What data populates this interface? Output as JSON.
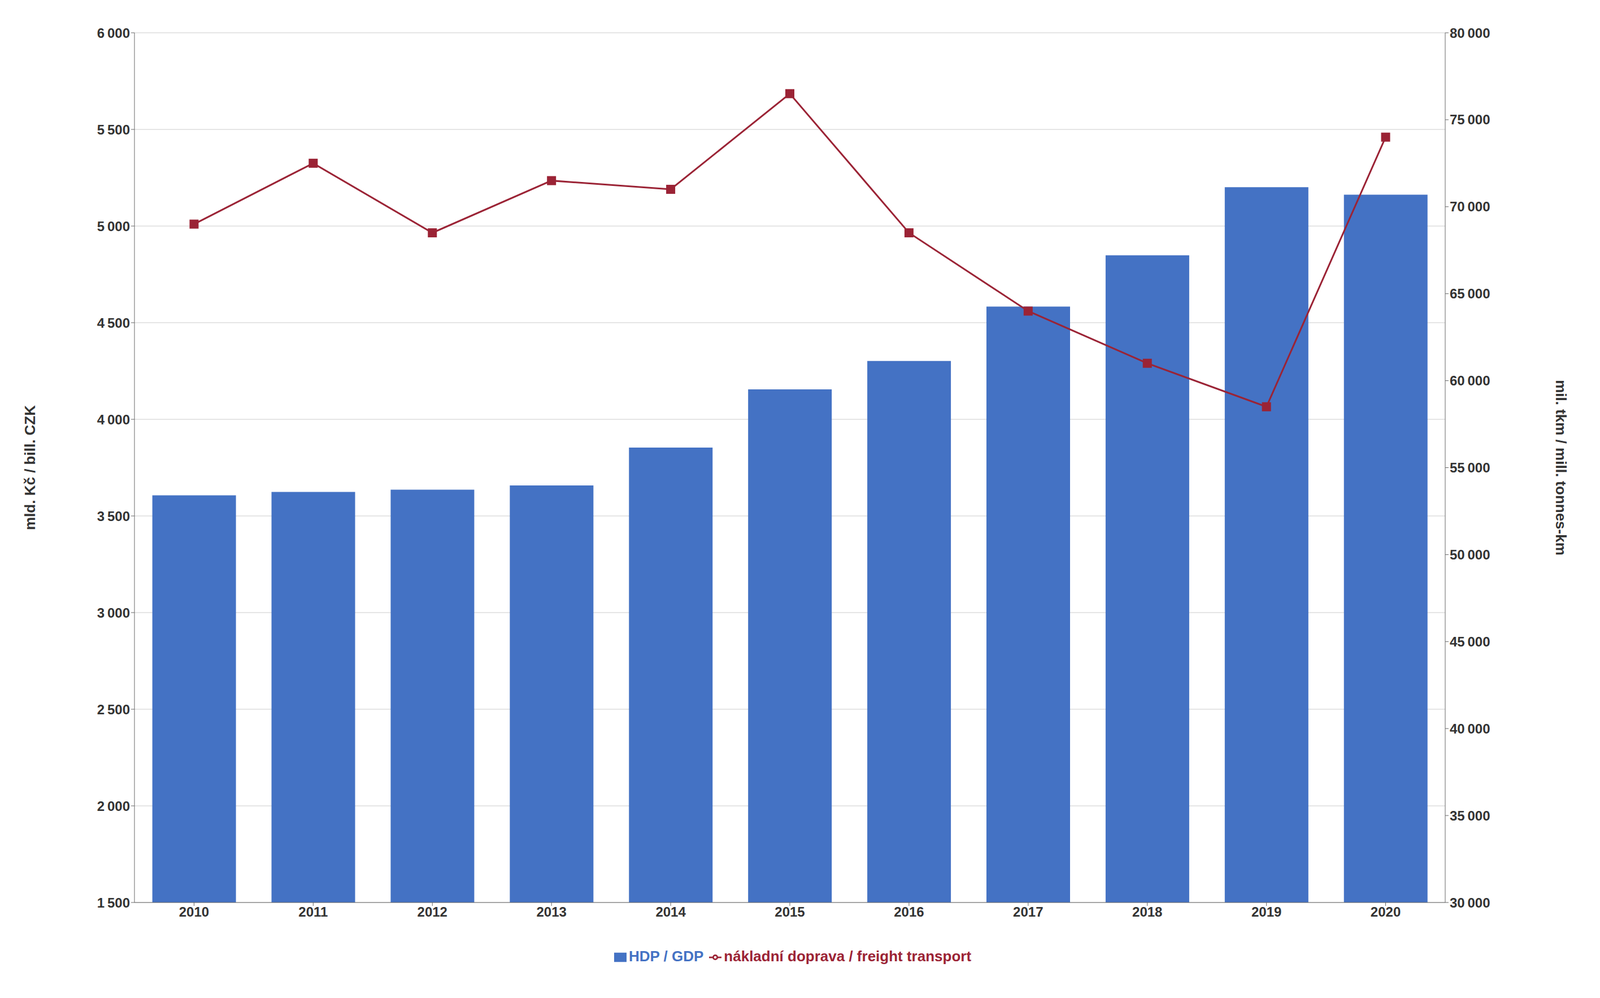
{
  "chart_data": {
    "type": "bar",
    "categories": [
      "2010",
      "2011",
      "2012",
      "2013",
      "2014",
      "2015",
      "2016",
      "2017",
      "2018",
      "2019",
      "2020"
    ],
    "series": [
      {
        "name": "HDP / GDP",
        "type": "bar",
        "color": "#4472C4",
        "values": [
          3607,
          3624,
          3636,
          3658,
          3854,
          4155,
          4302,
          4583,
          4849,
          5201,
          5162
        ]
      },
      {
        "name": "nákladní doprava / freight transport",
        "type": "line",
        "color": "#9B2335",
        "marker": "square",
        "axis": "y2",
        "values": [
          69000,
          72500,
          68500,
          71500,
          71000,
          76500,
          68500,
          64000,
          61000,
          58500,
          74000
        ]
      }
    ],
    "ylabel": "mld. Kč / bill. CZK",
    "y2label": "mil. tkm / mill. tonnes-km",
    "ylim": [
      1500,
      6000
    ],
    "yticks": [
      {
        "value": 1500,
        "label": "1 500"
      },
      {
        "value": 2000,
        "label": "2 000"
      },
      {
        "value": 2500,
        "label": "2 500"
      },
      {
        "value": 3000,
        "label": "3 000"
      },
      {
        "value": 3500,
        "label": "3 500"
      },
      {
        "value": 4000,
        "label": "4 000"
      },
      {
        "value": 4500,
        "label": "4 500"
      },
      {
        "value": 5000,
        "label": "5 000"
      },
      {
        "value": 5500,
        "label": "5 500"
      },
      {
        "value": 6000,
        "label": "6 000"
      }
    ],
    "y2lim": [
      30000,
      80000
    ],
    "y2ticks": [
      {
        "value": 30000,
        "label": "30 000"
      },
      {
        "value": 35000,
        "label": "35 000"
      },
      {
        "value": 40000,
        "label": "40 000"
      },
      {
        "value": 45000,
        "label": "45 000"
      },
      {
        "value": 50000,
        "label": "50 000"
      },
      {
        "value": 55000,
        "label": "55 000"
      },
      {
        "value": 60000,
        "label": "60 000"
      },
      {
        "value": 65000,
        "label": "65 000"
      },
      {
        "value": 70000,
        "label": "70 000"
      },
      {
        "value": 75000,
        "label": "75 000"
      },
      {
        "value": 80000,
        "label": "80 000"
      }
    ],
    "grid": "y",
    "legend": "bottom"
  }
}
